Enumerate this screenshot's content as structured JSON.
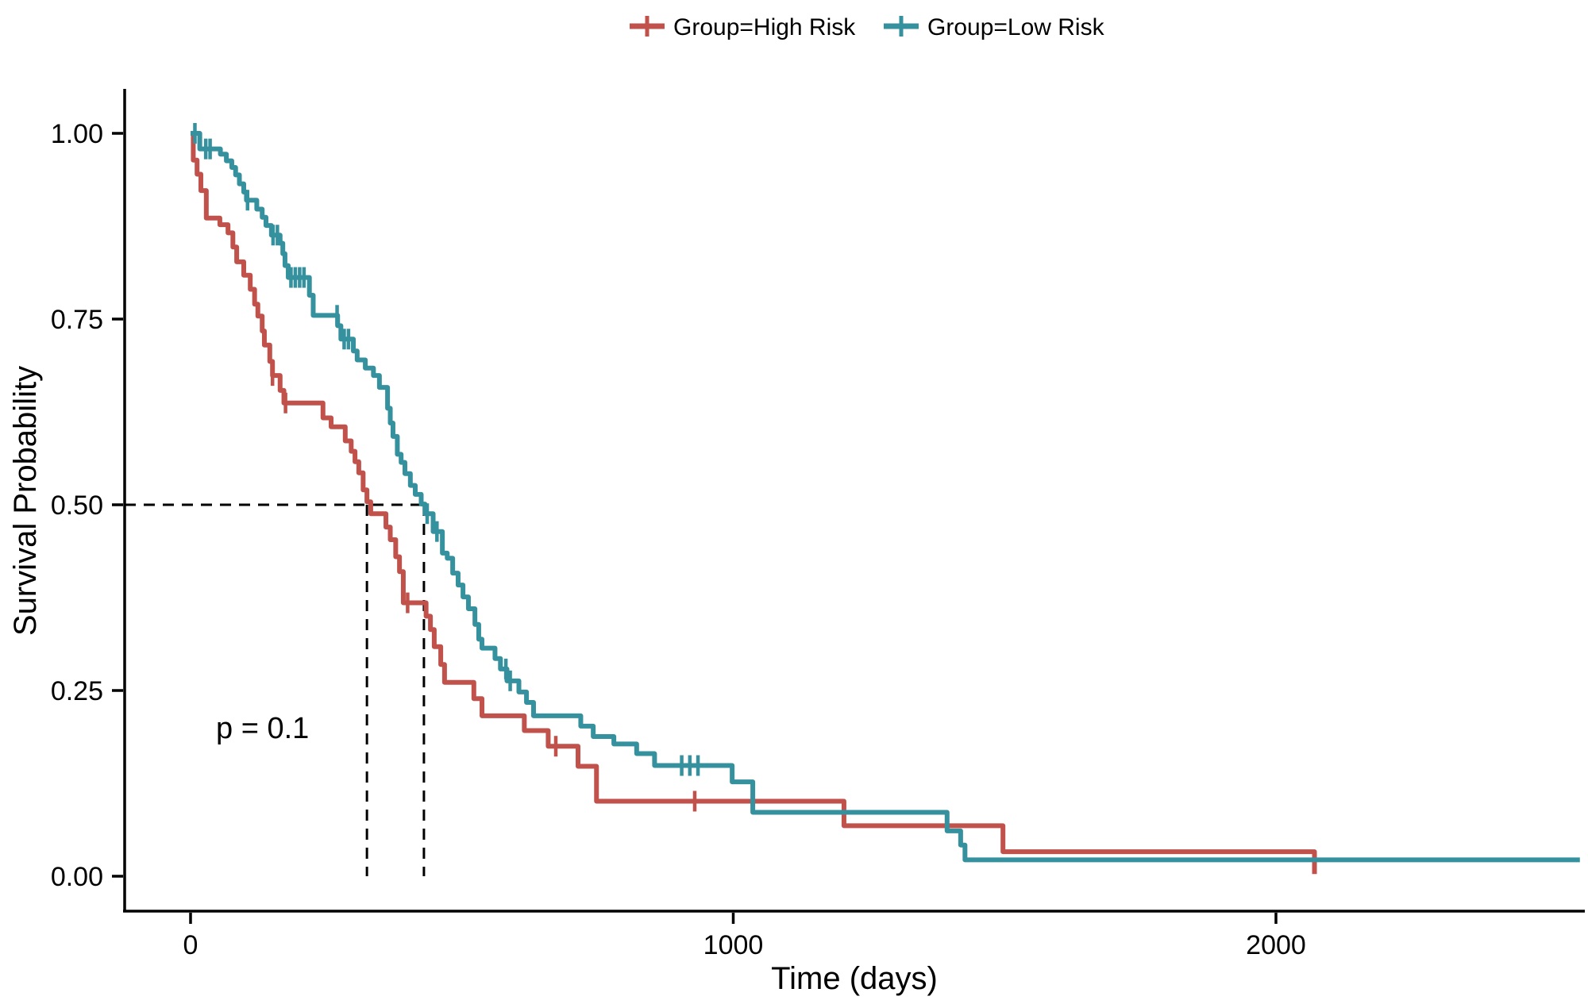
{
  "chart_data": {
    "type": "line",
    "subtype": "kaplan-meier-step",
    "title": "",
    "xlabel": "Time (days)",
    "ylabel": "Survival Probability",
    "p_value_label": "p = 0.1",
    "x_ticks": {
      "values": [
        0,
        1000,
        2000
      ],
      "labels": [
        "0",
        "1000",
        "2000"
      ]
    },
    "y_ticks": {
      "values": [
        1.0,
        0.75,
        0.5,
        0.25,
        0.0
      ],
      "labels": [
        "1.00",
        "0.75",
        "0.50",
        "0.25",
        "0.00"
      ]
    },
    "xlim": [
      -120,
      2570
    ],
    "ylim": [
      0,
      1.05
    ],
    "grid": false,
    "legend_position": "top-center",
    "median_survival": {
      "reference_probability": 0.5,
      "high_risk_days": 325,
      "low_risk_days": 430
    },
    "axis_color": "#000000",
    "median_line_color": "#000000",
    "series": [
      {
        "name": "Group=High Risk",
        "color": "#c0524b",
        "end_day": 2071,
        "steps": [
          [
            0,
            1.0
          ],
          [
            5,
            0.964
          ],
          [
            12,
            0.945
          ],
          [
            19,
            0.923
          ],
          [
            29,
            0.886
          ],
          [
            54,
            0.877
          ],
          [
            69,
            0.866
          ],
          [
            78,
            0.847
          ],
          [
            85,
            0.827
          ],
          [
            98,
            0.809
          ],
          [
            110,
            0.79
          ],
          [
            118,
            0.77
          ],
          [
            124,
            0.754
          ],
          [
            132,
            0.734
          ],
          [
            136,
            0.715
          ],
          [
            146,
            0.693
          ],
          [
            151,
            0.674
          ],
          [
            165,
            0.654
          ],
          [
            172,
            0.637
          ],
          [
            244,
            0.617
          ],
          [
            259,
            0.605
          ],
          [
            285,
            0.586
          ],
          [
            296,
            0.572
          ],
          [
            303,
            0.558
          ],
          [
            310,
            0.543
          ],
          [
            318,
            0.52
          ],
          [
            325,
            0.504
          ],
          [
            332,
            0.488
          ],
          [
            360,
            0.47
          ],
          [
            368,
            0.453
          ],
          [
            378,
            0.43
          ],
          [
            385,
            0.41
          ],
          [
            392,
            0.368
          ],
          [
            434,
            0.35
          ],
          [
            442,
            0.332
          ],
          [
            449,
            0.309
          ],
          [
            461,
            0.285
          ],
          [
            468,
            0.261
          ],
          [
            522,
            0.239
          ],
          [
            537,
            0.216
          ],
          [
            615,
            0.196
          ],
          [
            659,
            0.175
          ],
          [
            714,
            0.148
          ],
          [
            748,
            0.101
          ],
          [
            1204,
            0.068
          ],
          [
            1497,
            0.033
          ],
          [
            2071,
            0.003
          ]
        ],
        "censors": [
          [
            151,
            0.674
          ],
          [
            175,
            0.637
          ],
          [
            400,
            0.368
          ],
          [
            673,
            0.175
          ],
          [
            929,
            0.101
          ]
        ]
      },
      {
        "name": "Group=Low Risk",
        "color": "#35919e",
        "end_day": 2560,
        "steps": [
          [
            0,
            1.0
          ],
          [
            17,
            0.979
          ],
          [
            55,
            0.972
          ],
          [
            66,
            0.963
          ],
          [
            76,
            0.954
          ],
          [
            83,
            0.944
          ],
          [
            90,
            0.932
          ],
          [
            98,
            0.921
          ],
          [
            103,
            0.91
          ],
          [
            122,
            0.898
          ],
          [
            132,
            0.887
          ],
          [
            139,
            0.876
          ],
          [
            149,
            0.863
          ],
          [
            165,
            0.852
          ],
          [
            170,
            0.838
          ],
          [
            174,
            0.822
          ],
          [
            180,
            0.806
          ],
          [
            219,
            0.782
          ],
          [
            226,
            0.755
          ],
          [
            271,
            0.741
          ],
          [
            277,
            0.723
          ],
          [
            300,
            0.707
          ],
          [
            307,
            0.695
          ],
          [
            322,
            0.684
          ],
          [
            337,
            0.674
          ],
          [
            348,
            0.658
          ],
          [
            363,
            0.63
          ],
          [
            368,
            0.61
          ],
          [
            373,
            0.592
          ],
          [
            381,
            0.568
          ],
          [
            388,
            0.557
          ],
          [
            395,
            0.542
          ],
          [
            405,
            0.526
          ],
          [
            414,
            0.514
          ],
          [
            425,
            0.501
          ],
          [
            432,
            0.488
          ],
          [
            447,
            0.464
          ],
          [
            464,
            0.435
          ],
          [
            473,
            0.428
          ],
          [
            483,
            0.408
          ],
          [
            493,
            0.392
          ],
          [
            502,
            0.376
          ],
          [
            512,
            0.36
          ],
          [
            524,
            0.339
          ],
          [
            531,
            0.319
          ],
          [
            537,
            0.307
          ],
          [
            561,
            0.293
          ],
          [
            571,
            0.279
          ],
          [
            583,
            0.263
          ],
          [
            605,
            0.248
          ],
          [
            619,
            0.234
          ],
          [
            632,
            0.216
          ],
          [
            719,
            0.202
          ],
          [
            742,
            0.188
          ],
          [
            780,
            0.178
          ],
          [
            822,
            0.165
          ],
          [
            855,
            0.149
          ],
          [
            998,
            0.127
          ],
          [
            1036,
            0.086
          ],
          [
            1394,
            0.061
          ],
          [
            1419,
            0.042
          ],
          [
            1427,
            0.022
          ]
        ],
        "censors": [
          [
            8,
            1.0
          ],
          [
            28,
            0.979
          ],
          [
            36,
            0.979
          ],
          [
            105,
            0.91
          ],
          [
            152,
            0.863
          ],
          [
            160,
            0.863
          ],
          [
            185,
            0.806
          ],
          [
            193,
            0.806
          ],
          [
            201,
            0.806
          ],
          [
            209,
            0.806
          ],
          [
            270,
            0.755
          ],
          [
            283,
            0.723
          ],
          [
            291,
            0.723
          ],
          [
            436,
            0.488
          ],
          [
            454,
            0.464
          ],
          [
            581,
            0.279
          ],
          [
            589,
            0.263
          ],
          [
            905,
            0.149
          ],
          [
            920,
            0.149
          ],
          [
            935,
            0.149
          ]
        ]
      }
    ]
  }
}
